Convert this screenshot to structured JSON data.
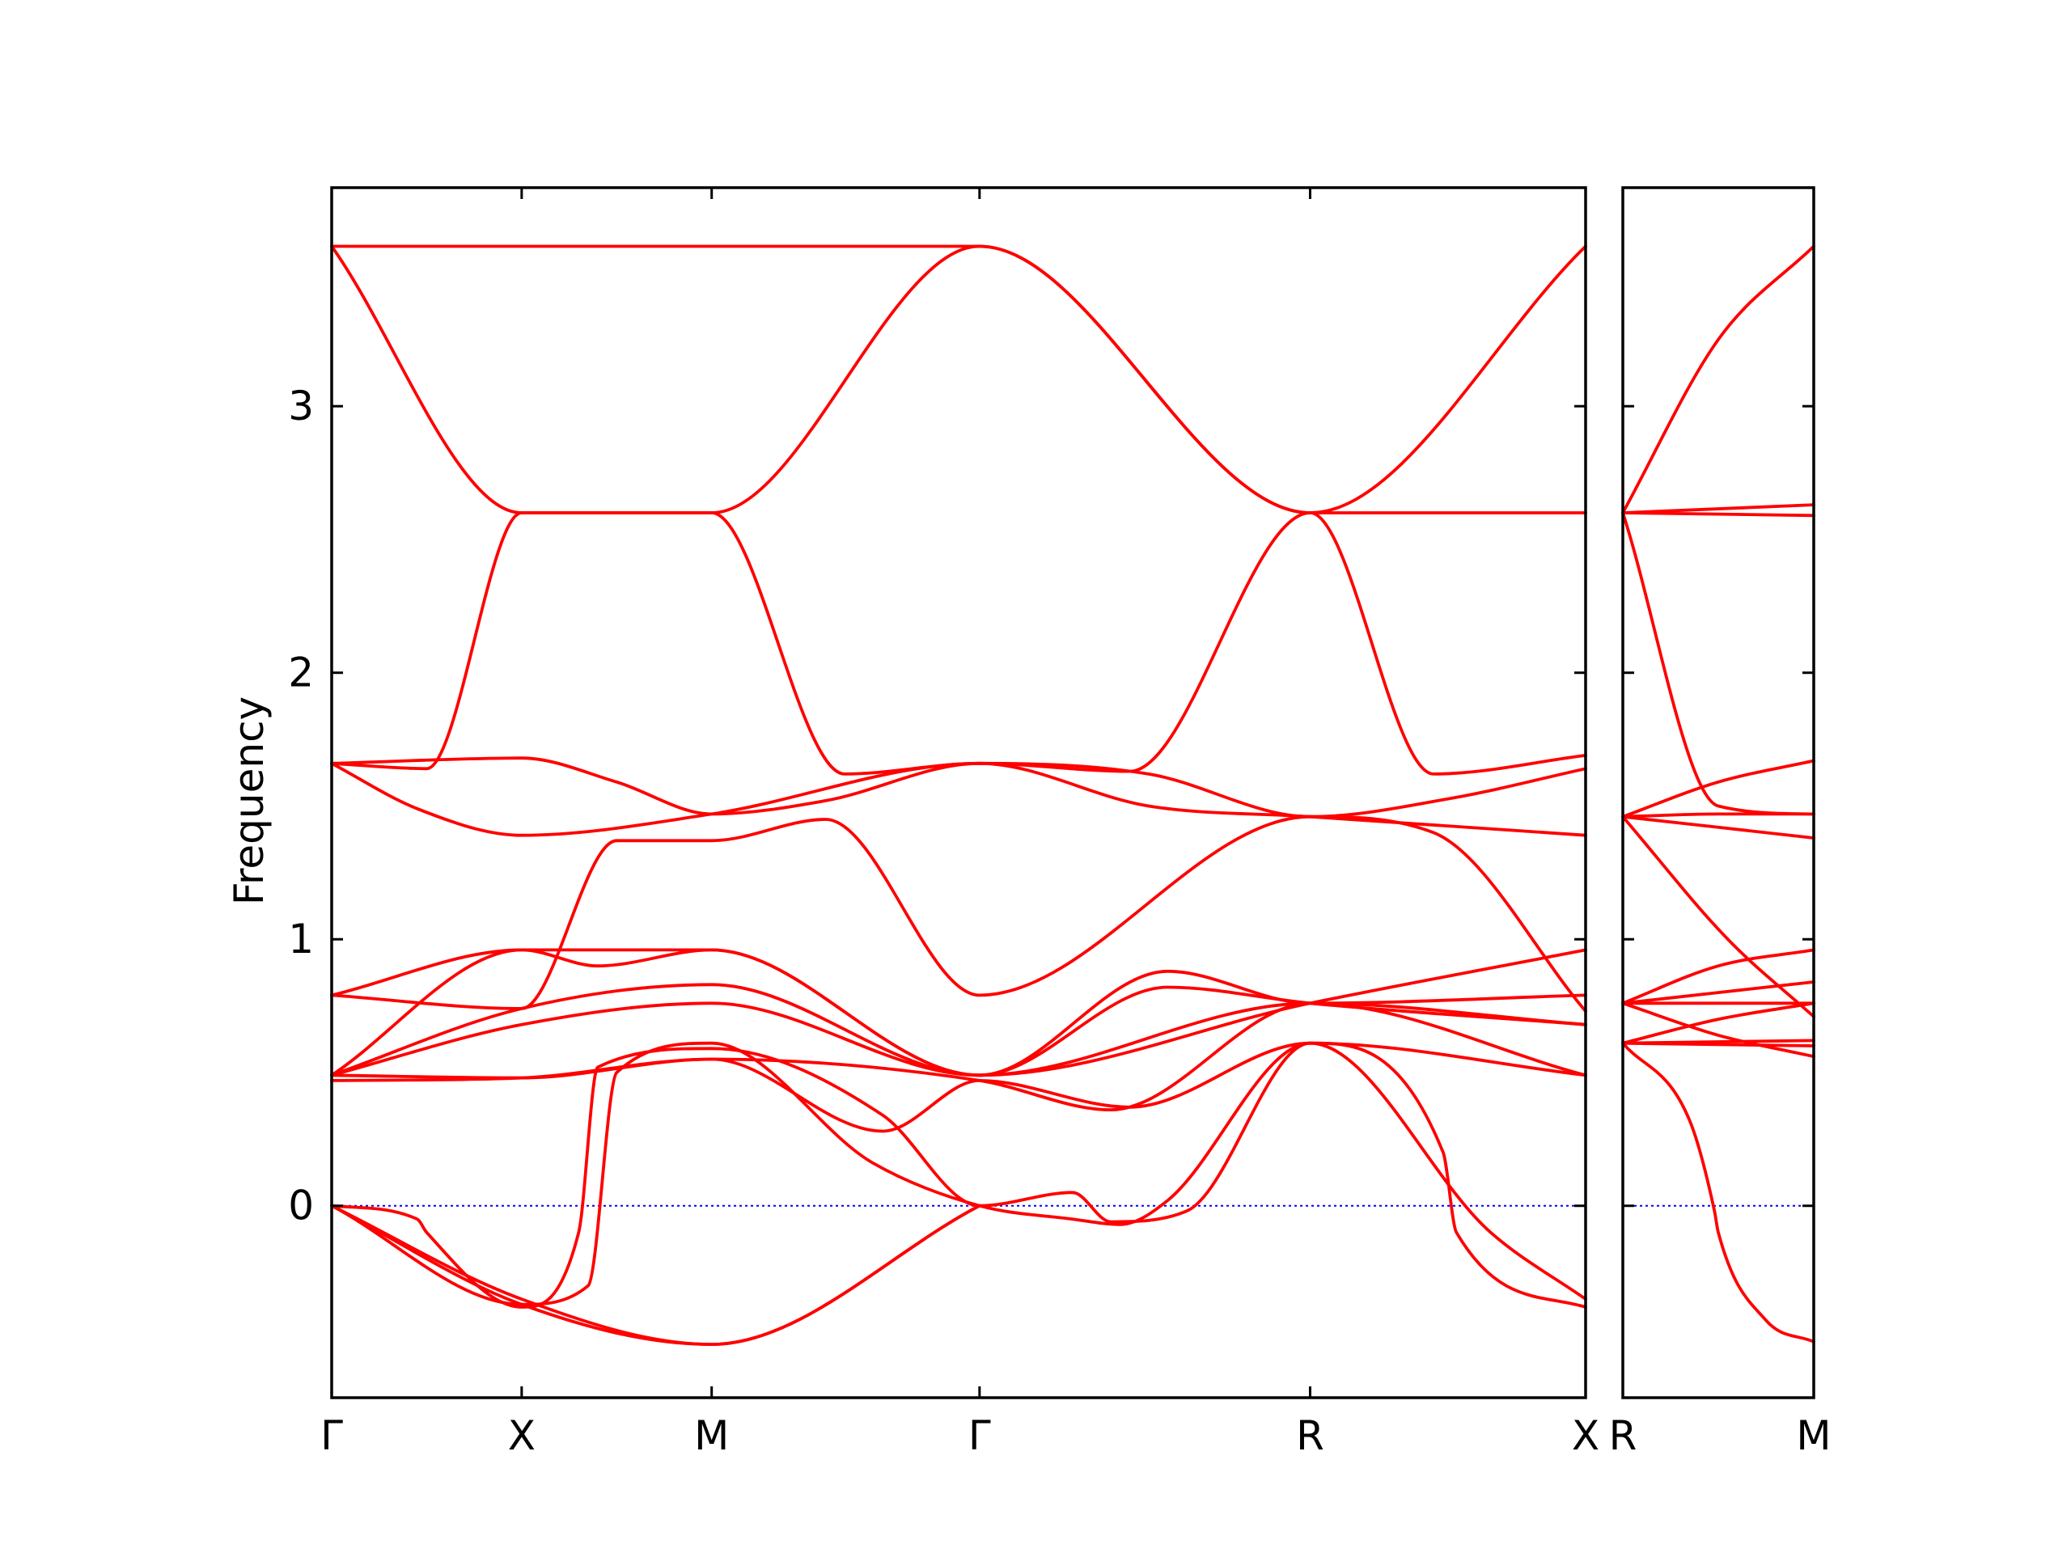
{
  "chart_data": {
    "type": "line",
    "ylabel": "Frequency",
    "ylim": [
      -0.72,
      3.82
    ],
    "yticks": [
      0,
      1,
      2,
      3
    ],
    "grid": false,
    "colors": {
      "bands": "#ff0000",
      "zero": "#0000ff",
      "axes": "#000000"
    },
    "panels": [
      {
        "x_range": [
          0,
          6.6
        ],
        "ticks": [
          {
            "x": 0,
            "label": "Γ"
          },
          {
            "x": 1,
            "label": "X"
          },
          {
            "x": 2,
            "label": "M"
          },
          {
            "x": 3.41,
            "label": "Γ"
          },
          {
            "x": 5.15,
            "label": "R"
          },
          {
            "x": 6.6,
            "label": "X"
          }
        ],
        "series": [
          {
            "x": [
              0,
              1,
              2,
              3.41,
              5.15,
              6.6
            ],
            "y": [
              3.6,
              3.6,
              3.6,
              3.6,
              2.6,
              3.6
            ]
          },
          {
            "x": [
              0,
              1,
              2,
              3.41,
              5.15,
              6.6
            ],
            "y": [
              3.6,
              2.6,
              2.6,
              3.6,
              2.6,
              2.6
            ]
          },
          {
            "x": [
              0,
              0.5,
              1,
              2,
              2.7,
              3.41,
              4.2,
              5.15,
              5.8,
              6.6
            ],
            "y": [
              1.66,
              1.64,
              2.6,
              2.6,
              1.62,
              1.66,
              1.63,
              2.6,
              1.62,
              1.69
            ]
          },
          {
            "x": [
              0,
              0.45,
              1,
              2,
              3.41,
              4.3,
              5.15,
              6.6
            ],
            "y": [
              1.66,
              1.49,
              1.39,
              1.47,
              1.66,
              1.5,
              1.46,
              1.39
            ]
          },
          {
            "x": [
              0,
              1,
              1.5,
              2,
              2.6,
              3.41,
              4.3,
              5.15,
              5.9,
              6.6
            ],
            "y": [
              1.66,
              1.68,
              1.59,
              1.47,
              1.52,
              1.66,
              1.62,
              1.46,
              1.53,
              1.64
            ]
          },
          {
            "x": [
              0,
              1,
              1.5,
              2,
              2.6,
              3.41,
              5.15,
              5.8,
              6.6
            ],
            "y": [
              0.79,
              0.74,
              1.37,
              1.37,
              1.45,
              0.79,
              1.46,
              1.4,
              0.73
            ]
          },
          {
            "x": [
              0,
              1,
              1.4,
              2,
              3.41,
              5.15,
              6.6
            ],
            "y": [
              0.79,
              0.96,
              0.9,
              0.96,
              0.49,
              0.76,
              0.96
            ]
          },
          {
            "x": [
              0,
              1,
              2,
              3.41,
              4.4,
              5.15,
              6.6
            ],
            "y": [
              0.49,
              0.96,
              0.96,
              0.49,
              0.88,
              0.76,
              0.79
            ]
          },
          {
            "x": [
              0,
              1,
              2,
              3.41,
              4.4,
              5.15,
              6.6
            ],
            "y": [
              0.49,
              0.74,
              0.83,
              0.49,
              0.82,
              0.76,
              0.68
            ]
          },
          {
            "x": [
              0,
              1,
              2,
              3.41,
              5.15,
              6.6
            ],
            "y": [
              0.49,
              0.68,
              0.76,
              0.49,
              0.76,
              0.49
            ]
          },
          {
            "x": [
              0,
              1,
              2,
              3.41,
              4.1,
              5.15,
              6.6
            ],
            "y": [
              0.49,
              0.48,
              0.55,
              0.47,
              0.36,
              0.76,
              0.68
            ]
          },
          {
            "x": [
              0,
              1,
              2,
              2.9,
              3.41,
              4.2,
              5.15,
              6.6
            ],
            "y": [
              0.47,
              0.48,
              0.55,
              0.28,
              0.47,
              0.37,
              0.61,
              0.49
            ]
          },
          {
            "x": [
              0,
              0.45,
              0.5,
              1,
              1.3,
              1.4,
              2,
              2.9,
              3.41,
              3.9,
              4.1,
              4.5,
              5.15,
              5.85,
              5.92,
              6.6
            ],
            "y": [
              0,
              -0.05,
              -0.1,
              -0.38,
              -0.1,
              0.52,
              0.59,
              0.34,
              0,
              0.05,
              -0.06,
              -0.02,
              0.61,
              0.2,
              -0.1,
              -0.38
            ]
          },
          {
            "x": [
              0,
              1,
              1.35,
              1.5,
              2,
              2.85,
              3.41,
              3.9,
              4.15,
              4.4,
              5.15,
              6.1,
              6.6
            ],
            "y": [
              0,
              -0.37,
              -0.3,
              0.5,
              0.61,
              0.16,
              0,
              -0.05,
              -0.07,
              0.02,
              0.61,
              -0.1,
              -0.35
            ]
          },
          {
            "x": [
              0,
              1,
              2,
              3.41
            ],
            "y": [
              0,
              -0.37,
              -0.52,
              0
            ]
          },
          {
            "x": [
              0,
              1,
              2,
              3.41
            ],
            "y": [
              0,
              -0.35,
              -0.52,
              0
            ]
          }
        ]
      },
      {
        "x_range": [
          0,
          1
        ],
        "ticks": [
          {
            "x": 0,
            "label": "R"
          },
          {
            "x": 1,
            "label": "M"
          }
        ],
        "series": [
          {
            "x": [
              0,
              0.5,
              1
            ],
            "y": [
              2.6,
              3.25,
              3.6
            ]
          },
          {
            "x": [
              0,
              1
            ],
            "y": [
              2.6,
              2.63
            ]
          },
          {
            "x": [
              0,
              1
            ],
            "y": [
              2.6,
              2.59
            ]
          },
          {
            "x": [
              0,
              0.5,
              1
            ],
            "y": [
              2.6,
              1.5,
              1.47
            ]
          },
          {
            "x": [
              0,
              0.5,
              1
            ],
            "y": [
              1.46,
              1.59,
              1.67
            ]
          },
          {
            "x": [
              0,
              0.5,
              1
            ],
            "y": [
              1.46,
              1.47,
              1.47
            ]
          },
          {
            "x": [
              0,
              1
            ],
            "y": [
              1.46,
              1.38
            ]
          },
          {
            "x": [
              0,
              0.55,
              1
            ],
            "y": [
              1.46,
              1.0,
              0.71
            ]
          },
          {
            "x": [
              0,
              0.5,
              1
            ],
            "y": [
              0.76,
              0.9,
              0.96
            ]
          },
          {
            "x": [
              0,
              0.5,
              1
            ],
            "y": [
              0.76,
              0.8,
              0.84
            ]
          },
          {
            "x": [
              0,
              1
            ],
            "y": [
              0.76,
              0.76
            ]
          },
          {
            "x": [
              0,
              0.5,
              1
            ],
            "y": [
              0.76,
              0.64,
              0.56
            ]
          },
          {
            "x": [
              0,
              0.5,
              1
            ],
            "y": [
              0.61,
              0.7,
              0.76
            ]
          },
          {
            "x": [
              0,
              1
            ],
            "y": [
              0.61,
              0.62
            ]
          },
          {
            "x": [
              0,
              1
            ],
            "y": [
              0.61,
              0.6
            ]
          },
          {
            "x": [
              0,
              0.35,
              0.48,
              0.5,
              0.75,
              1
            ],
            "y": [
              0.61,
              0.32,
              -0.02,
              -0.1,
              -0.43,
              -0.51
            ]
          }
        ]
      }
    ]
  }
}
